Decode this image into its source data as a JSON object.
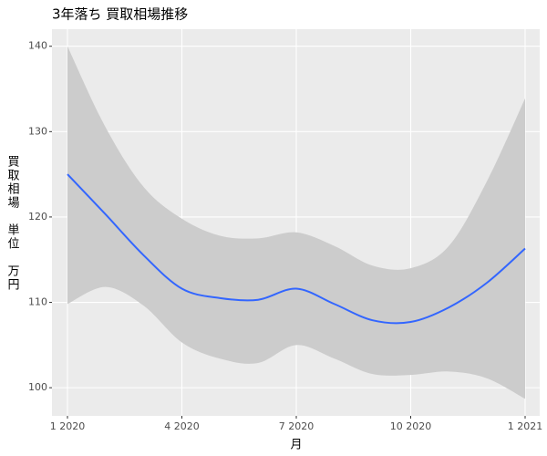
{
  "chart_data": {
    "type": "smooth",
    "title": "3年落ち 買取相場推移",
    "x_label": "月",
    "y_label": "買取相場　単位　万円",
    "x": [
      "2020-01",
      "2020-02",
      "2020-03",
      "2020-04",
      "2020-05",
      "2020-06",
      "2020-07",
      "2020-08",
      "2020-09",
      "2020-10",
      "2020-11",
      "2020-12",
      "2021-01"
    ],
    "values": [
      125.0,
      120.3,
      115.5,
      111.6,
      110.5,
      110.3,
      111.6,
      109.8,
      107.9,
      107.7,
      109.4,
      112.3,
      116.3
    ],
    "upper": [
      140.0,
      130.5,
      123.5,
      119.8,
      117.8,
      117.5,
      118.2,
      116.6,
      114.3,
      114.0,
      116.6,
      124.2,
      133.9
    ],
    "lower": [
      109.8,
      111.8,
      109.6,
      105.3,
      103.4,
      102.9,
      105.0,
      103.4,
      101.6,
      101.5,
      101.9,
      101.1,
      98.7
    ],
    "color": "#3366FF",
    "band_color": "#CCCCCC",
    "xlim": [
      "2020-01",
      "2021-01"
    ],
    "xticks": [
      {
        "value": "2020-01",
        "label": "1 2020"
      },
      {
        "value": "2020-04",
        "label": "4 2020"
      },
      {
        "value": "2020-07",
        "label": "7 2020"
      },
      {
        "value": "2020-10",
        "label": "10 2020"
      },
      {
        "value": "2021-01",
        "label": "1 2021"
      }
    ],
    "ylim": [
      96.7,
      142.0
    ],
    "yticks": [
      100,
      110,
      120,
      130,
      140
    ],
    "grid": true
  }
}
